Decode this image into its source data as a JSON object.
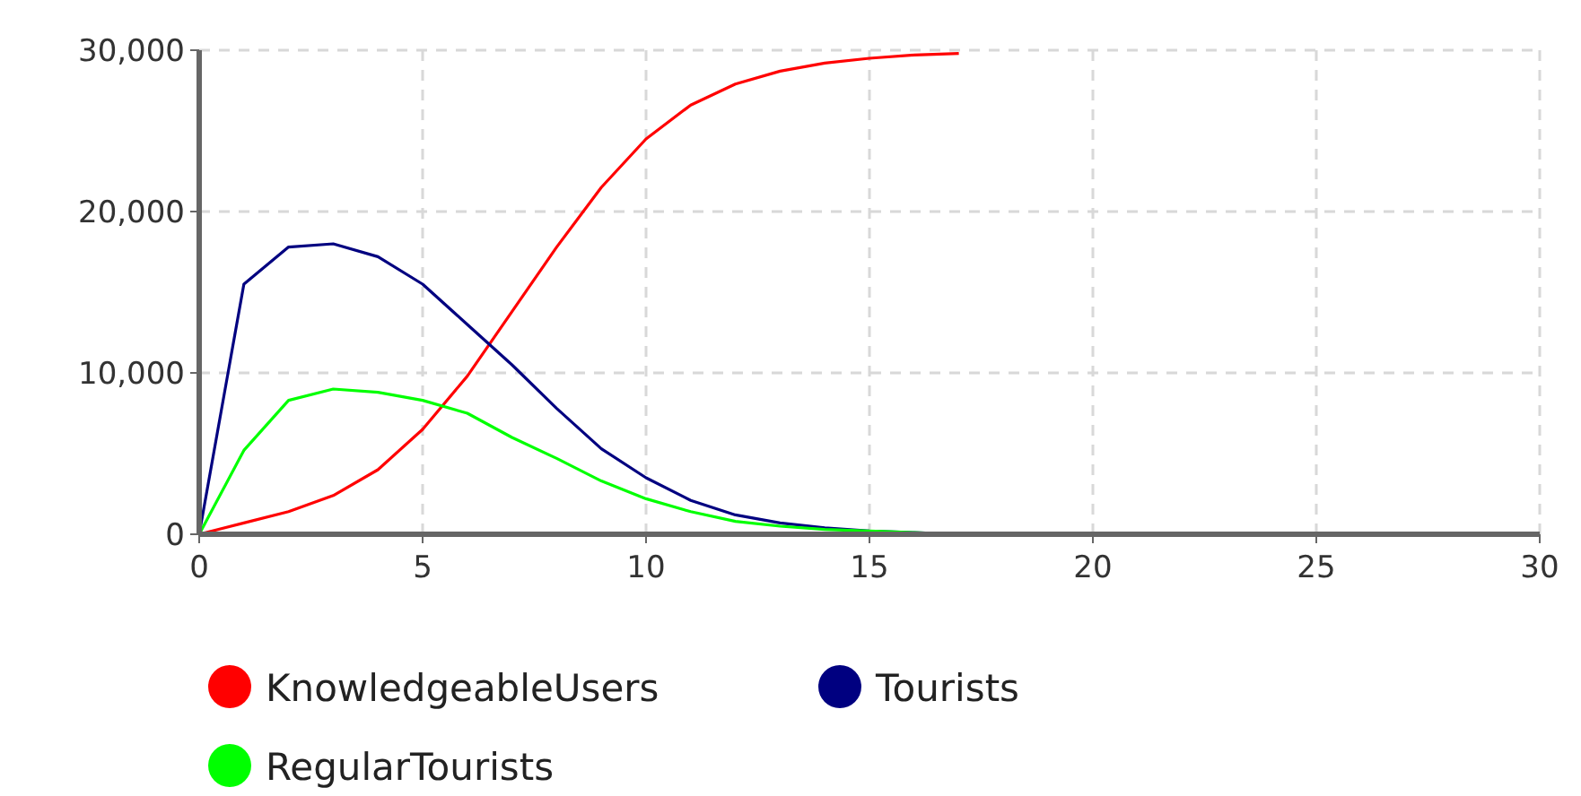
{
  "chart_data": {
    "type": "line",
    "x": [
      0,
      1,
      2,
      3,
      4,
      5,
      6,
      7,
      8,
      9,
      10,
      11,
      12,
      13,
      14,
      15,
      16,
      17
    ],
    "series": [
      {
        "name": "KnowledgeableUsers",
        "color": "#ff0000",
        "values": [
          0,
          700,
          1400,
          2400,
          4000,
          6500,
          9800,
          13800,
          17800,
          21500,
          24500,
          26600,
          27900,
          28700,
          29200,
          29500,
          29700,
          29800
        ]
      },
      {
        "name": "Tourists",
        "color": "#000080",
        "values": [
          0,
          15500,
          17800,
          18000,
          17200,
          15500,
          13000,
          10500,
          7800,
          5300,
          3500,
          2100,
          1200,
          700,
          400,
          200,
          100,
          0
        ]
      },
      {
        "name": "RegularTourists",
        "color": "#00ff00",
        "values": [
          0,
          5200,
          8300,
          9000,
          8800,
          8300,
          7500,
          6000,
          4700,
          3300,
          2200,
          1400,
          800,
          500,
          300,
          200,
          100,
          0
        ]
      }
    ],
    "xlim": [
      0,
      30
    ],
    "xticks": [
      0,
      5,
      10,
      15,
      20,
      25,
      30
    ],
    "ylim": [
      0,
      30000
    ],
    "yticks": [
      {
        "value": 0,
        "label": "0"
      },
      {
        "value": 10000,
        "label": "10,000"
      },
      {
        "value": 20000,
        "label": "20,000"
      },
      {
        "value": 30000,
        "label": "30,000"
      }
    ],
    "grid": true,
    "legend": "bottom",
    "marker": "none",
    "line_style": "solid"
  }
}
